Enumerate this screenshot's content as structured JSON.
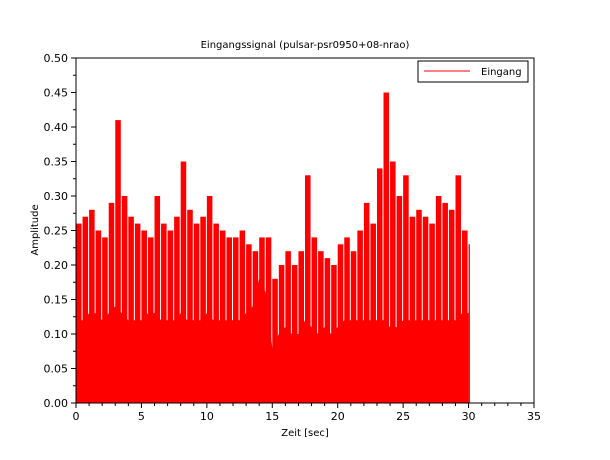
{
  "chart_data": {
    "type": "bar",
    "title": "Eingangssignal (pulsar-psr0950+08-nrao)",
    "xlabel": "Zeit [sec]",
    "ylabel": "Amplitude",
    "xlim": [
      0,
      35
    ],
    "ylim": [
      0,
      0.5
    ],
    "xticks": [
      0,
      5,
      10,
      15,
      20,
      25,
      30,
      35
    ],
    "xtick_labels": [
      "0",
      "5",
      "10",
      "15",
      "20",
      "25",
      "30",
      "35"
    ],
    "yticks": [
      0,
      0.05,
      0.1,
      0.15,
      0.2,
      0.25,
      0.3,
      0.35,
      0.4,
      0.45,
      0.5
    ],
    "ytick_labels": [
      "0.00",
      "0.05",
      "0.10",
      "0.15",
      "0.20",
      "0.25",
      "0.30",
      "0.35",
      "0.40",
      "0.45",
      "0.50"
    ],
    "grid": false,
    "legend_position": "top-right",
    "series": [
      {
        "name": "Eingang",
        "color": "#ff0000",
        "x": [
          0.0,
          0.5,
          1.0,
          1.5,
          2.0,
          2.5,
          3.0,
          3.5,
          4.0,
          4.5,
          5.0,
          5.5,
          6.0,
          6.5,
          7.0,
          7.5,
          8.0,
          8.5,
          9.0,
          9.5,
          10.0,
          10.5,
          11.0,
          11.5,
          12.0,
          12.5,
          13.0,
          13.5,
          14.0,
          14.5,
          15.0,
          15.5,
          16.0,
          16.5,
          17.0,
          17.5,
          18.0,
          18.5,
          19.0,
          19.5,
          20.0,
          20.5,
          21.0,
          21.5,
          22.0,
          22.5,
          23.0,
          23.5,
          24.0,
          24.5,
          25.0,
          25.5,
          26.0,
          26.5,
          27.0,
          27.5,
          28.0,
          28.5,
          29.0,
          29.5,
          30.0
        ],
        "values": [
          0.26,
          0.27,
          0.28,
          0.25,
          0.24,
          0.29,
          0.41,
          0.3,
          0.27,
          0.26,
          0.25,
          0.24,
          0.3,
          0.26,
          0.25,
          0.27,
          0.35,
          0.28,
          0.26,
          0.27,
          0.3,
          0.26,
          0.25,
          0.24,
          0.24,
          0.25,
          0.23,
          0.22,
          0.24,
          0.24,
          0.18,
          0.2,
          0.22,
          0.2,
          0.22,
          0.33,
          0.24,
          0.22,
          0.21,
          0.2,
          0.23,
          0.24,
          0.22,
          0.25,
          0.29,
          0.26,
          0.34,
          0.45,
          0.35,
          0.3,
          0.33,
          0.27,
          0.28,
          0.27,
          0.26,
          0.3,
          0.29,
          0.28,
          0.33,
          0.25,
          0.23
        ]
      }
    ],
    "noise_floor": [
      0.12,
      0.12,
      0.13,
      0.13,
      0.12,
      0.13,
      0.14,
      0.13,
      0.12,
      0.12,
      0.12,
      0.13,
      0.13,
      0.12,
      0.12,
      0.12,
      0.13,
      0.12,
      0.12,
      0.12,
      0.13,
      0.12,
      0.12,
      0.12,
      0.12,
      0.12,
      0.13,
      0.14,
      0.18,
      0.16,
      0.08,
      0.1,
      0.11,
      0.1,
      0.1,
      0.12,
      0.11,
      0.1,
      0.11,
      0.1,
      0.11,
      0.12,
      0.12,
      0.12,
      0.12,
      0.12,
      0.12,
      0.12,
      0.11,
      0.11,
      0.12,
      0.12,
      0.12,
      0.12,
      0.12,
      0.12,
      0.12,
      0.12,
      0.12,
      0.13,
      0.13
    ]
  }
}
